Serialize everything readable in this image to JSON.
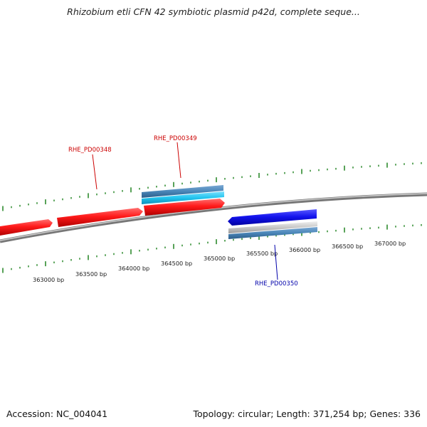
{
  "title": "Rhizobium etli CFN 42 symbiotic plasmid p42d, complete seque...",
  "footer": {
    "accession": "Accession: NC_004041",
    "summary": "Topology: circular; Length: 371,254 bp; Genes: 336"
  },
  "colors": {
    "forward_gene": "#ff2020",
    "reverse_gene": "#1a1aee",
    "steel_blue": "#4a86b8",
    "sky_blue": "#22c4ee",
    "silver": "#c8c8c8",
    "tick_green": "#2e8b2e",
    "label_red": "#cc0000",
    "label_blue": "#0000aa",
    "backbone": "#888888"
  },
  "scale": {
    "labels": [
      "363000 bp",
      "363500 bp",
      "364000 bp",
      "364500 bp",
      "365000 bp",
      "365500 bp",
      "366000 bp",
      "366500 bp",
      "367000 bp"
    ]
  },
  "genes": [
    {
      "label": "RHE_PD00348",
      "strand": "forward"
    },
    {
      "label": "RHE_PD00349",
      "strand": "forward"
    },
    {
      "label": "RHE_PD00350",
      "strand": "reverse"
    }
  ]
}
